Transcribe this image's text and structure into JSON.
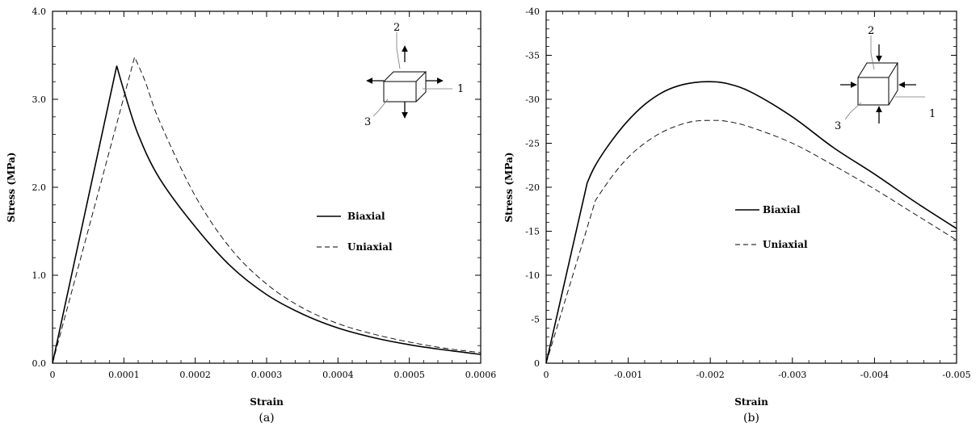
{
  "chart_data": [
    {
      "type": "line",
      "caption": "(a)",
      "xlabel": "Strain",
      "ylabel": "Stress (MPa)",
      "xlim": [
        0,
        0.0006
      ],
      "ylim": [
        0,
        4.0
      ],
      "x_ticks": [
        "0",
        "0.0001",
        "0.0002",
        "0.0003",
        "0.0004",
        "0.0005",
        "0.0006"
      ],
      "y_ticks": [
        "0.0",
        "1.0",
        "2.0",
        "3.0",
        "4.0"
      ],
      "series": [
        {
          "name": "Biaxial",
          "style": "solid",
          "x": [
            0,
            9e-05,
            0.0001,
            0.00012,
            0.00015,
            0.0002,
            0.00025,
            0.0003,
            0.00035,
            0.0004,
            0.00045,
            0.0005,
            0.00055,
            0.0006
          ],
          "y": [
            0,
            3.38,
            3.1,
            2.6,
            2.1,
            1.55,
            1.1,
            0.78,
            0.56,
            0.4,
            0.29,
            0.21,
            0.15,
            0.1
          ]
        },
        {
          "name": "Uniaxial",
          "style": "dashed",
          "x": [
            0,
            0.000115,
            0.00013,
            0.00015,
            0.0002,
            0.00025,
            0.0003,
            0.00035,
            0.0004,
            0.00045,
            0.0005,
            0.00055,
            0.0006
          ],
          "y": [
            0,
            3.48,
            3.2,
            2.75,
            1.9,
            1.3,
            0.9,
            0.63,
            0.45,
            0.33,
            0.24,
            0.17,
            0.12
          ]
        }
      ],
      "inset": {
        "labels": [
          "1",
          "2",
          "3"
        ],
        "arrows": "outward"
      }
    },
    {
      "type": "line",
      "caption": "(b)",
      "xlabel": "Strain",
      "ylabel": "Stress (MPa)",
      "xlim": [
        0,
        -0.005
      ],
      "ylim": [
        0,
        -40
      ],
      "x_ticks": [
        "0",
        "-0.001",
        "-0.002",
        "-0.003",
        "-0.004",
        "-0.005"
      ],
      "y_ticks": [
        "0",
        "-5",
        "-10",
        "-15",
        "-20",
        "-25",
        "-30",
        "-35",
        "-40"
      ],
      "series": [
        {
          "name": "Biaxial",
          "style": "solid",
          "x": [
            0,
            -0.0005,
            -0.0006,
            -0.0008,
            -0.001,
            -0.0012,
            -0.0014,
            -0.0016,
            -0.0018,
            -0.002,
            -0.0022,
            -0.0025,
            -0.003,
            -0.0035,
            -0.004,
            -0.0045,
            -0.005
          ],
          "y": [
            0,
            -20.5,
            -22.5,
            -25.3,
            -27.6,
            -29.4,
            -30.7,
            -31.5,
            -31.9,
            -32.0,
            -31.8,
            -30.8,
            -28.0,
            -24.5,
            -21.5,
            -18.3,
            -15.3
          ]
        },
        {
          "name": "Uniaxial",
          "style": "dashed",
          "x": [
            0,
            -0.0006,
            -0.0008,
            -0.001,
            -0.0012,
            -0.0014,
            -0.0016,
            -0.0018,
            -0.002,
            -0.0022,
            -0.0025,
            -0.003,
            -0.0035,
            -0.004,
            -0.0045,
            -0.005
          ],
          "y": [
            0,
            -18.5,
            -21.2,
            -23.4,
            -25.0,
            -26.2,
            -27.0,
            -27.5,
            -27.6,
            -27.5,
            -26.8,
            -25.0,
            -22.5,
            -19.8,
            -16.9,
            -14.0
          ]
        }
      ],
      "inset": {
        "labels": [
          "1",
          "2",
          "3"
        ],
        "arrows": "inward"
      }
    }
  ]
}
